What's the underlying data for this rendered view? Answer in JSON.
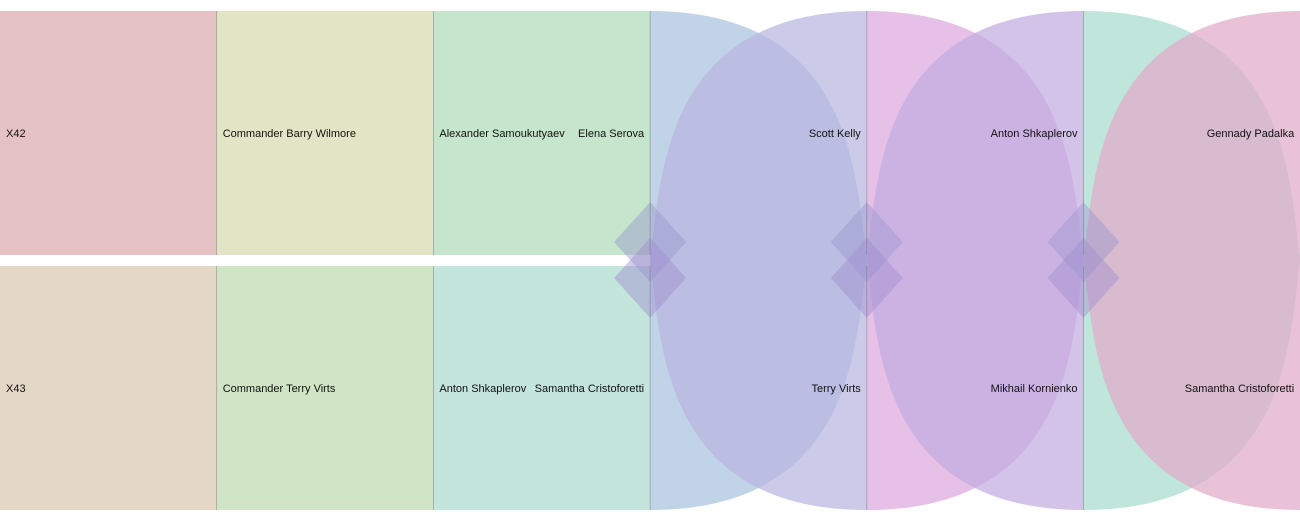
{
  "rows": [
    {
      "id": "row-x42",
      "color_shift": 0
    },
    {
      "id": "row-x43",
      "color_shift": 1
    }
  ],
  "columns": [
    {
      "top": {
        "left": "X42",
        "right": ""
      },
      "bottom": {
        "left": "X43",
        "right": ""
      },
      "top_color": "#e5c3c5",
      "bottom_color": "#e5d7c6"
    },
    {
      "top": {
        "left": "Commander Barry Wilmore",
        "right": ""
      },
      "bottom": {
        "left": "Commander Terry Virts",
        "right": ""
      },
      "top_color": "#e2e5c5",
      "bottom_color": "#d0e5c5"
    },
    {
      "top": {
        "left": "Alexander Samoukutyaev",
        "right": "Elena Serova"
      },
      "bottom": {
        "left": "Anton Shkaplerov",
        "right": "Samantha Cristoforetti"
      },
      "top_color": "#c5e5cc",
      "bottom_color": "#c3e5dc"
    },
    {
      "top": {
        "left": "",
        "right": "Scott Kelly"
      },
      "bottom": {
        "left": "",
        "right": "Terry Virts"
      },
      "top_color": "#c3dbe5",
      "bottom_color": "#c4c8e5"
    },
    {
      "top": {
        "left": "",
        "right": "Anton Shkaplerov"
      },
      "bottom": {
        "left": "",
        "right": "Mikhail Kornienko"
      },
      "top_color": "#e3c3e5",
      "bottom_color": "#d1c3e5"
    },
    {
      "top": {
        "left": "",
        "right": "Gennady Padalka"
      },
      "bottom": {
        "left": "",
        "right": "Samantha Cristoforetti"
      },
      "top_color": "#c3e5dc",
      "bottom_color": "#e5c3d8"
    }
  ],
  "lens_colors": [
    "#a9c2dc",
    "#b8b6e0",
    "#dca8de",
    "#c2ace0",
    "#a8dccf",
    "#e1aac9"
  ],
  "overlap_colors": {
    "pair1": "#9fb3d6",
    "pair2": "#c09dd6",
    "pair3": "#c2b2c2"
  }
}
